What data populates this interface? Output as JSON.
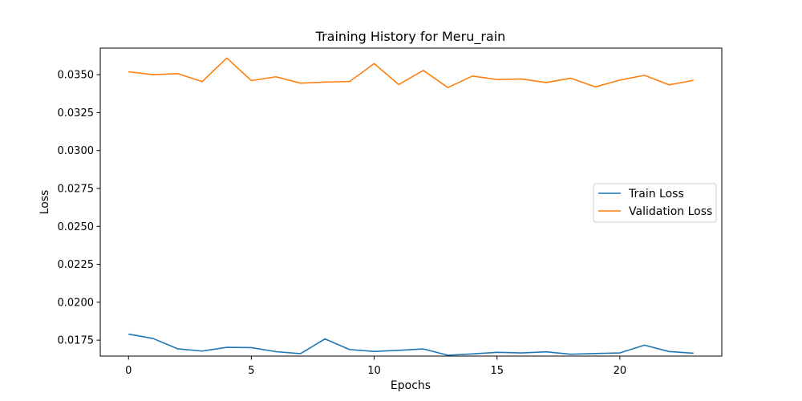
{
  "chart_data": {
    "type": "line",
    "title": "Training History for Meru_rain",
    "xlabel": "Epochs",
    "ylabel": "Loss",
    "xlim": [
      -1.15,
      24.15
    ],
    "ylim": [
      0.01645,
      0.03675
    ],
    "xticks": [
      0,
      5,
      10,
      15,
      20
    ],
    "xtick_labels": [
      "0",
      "5",
      "10",
      "15",
      "20"
    ],
    "yticks": [
      0.0175,
      0.02,
      0.0225,
      0.025,
      0.0275,
      0.03,
      0.0325,
      0.035
    ],
    "ytick_labels": [
      "0.0175",
      "0.0200",
      "0.0225",
      "0.0250",
      "0.0275",
      "0.0300",
      "0.0325",
      "0.0350"
    ],
    "grid": false,
    "legend_position": "center-right",
    "x": [
      0,
      1,
      2,
      3,
      4,
      5,
      6,
      7,
      8,
      9,
      10,
      11,
      12,
      13,
      14,
      15,
      16,
      17,
      18,
      19,
      20,
      21,
      22,
      23
    ],
    "series": [
      {
        "name": "Train Loss",
        "color": "#1f77b4",
        "values": [
          0.0179,
          0.01761,
          0.01693,
          0.01678,
          0.01703,
          0.01701,
          0.01674,
          0.01661,
          0.01758,
          0.01688,
          0.01676,
          0.01683,
          0.01692,
          0.01651,
          0.01659,
          0.0167,
          0.01666,
          0.01673,
          0.01657,
          0.01662,
          0.01666,
          0.01717,
          0.01675,
          0.01664
        ]
      },
      {
        "name": "Validation Loss",
        "color": "#ff7f0e",
        "values": [
          0.03519,
          0.035,
          0.03507,
          0.03454,
          0.0361,
          0.03461,
          0.03486,
          0.03444,
          0.03451,
          0.03455,
          0.03573,
          0.03435,
          0.03528,
          0.03415,
          0.03491,
          0.03468,
          0.03472,
          0.03448,
          0.03477,
          0.03419,
          0.03464,
          0.03496,
          0.03433,
          0.03463
        ]
      }
    ]
  }
}
